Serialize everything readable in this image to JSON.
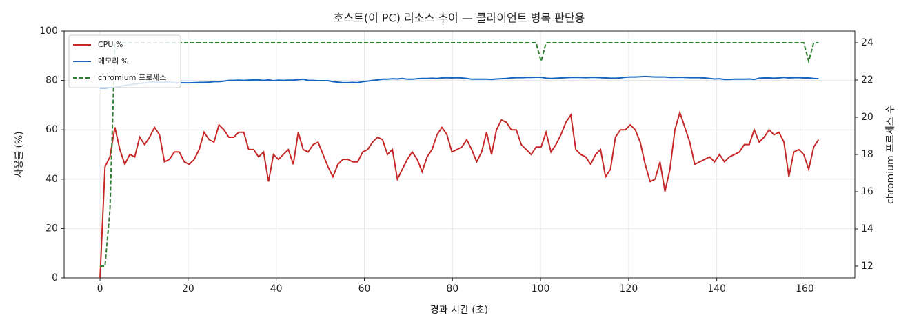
{
  "chart_data": {
    "type": "line",
    "title": "호스트(이 PC) 리소스 추이 — 클라이언트 병목 판단용",
    "x_label": "경과 시간 (초)",
    "y_label": "사용률 (%)",
    "y2_label": "chromium 프로세스 수",
    "x": [
      0,
      1.125,
      2.25,
      3.375,
      4.5,
      5.625,
      6.75,
      7.875,
      9,
      10.125,
      11.25,
      12.375,
      13.5,
      14.625,
      15.75,
      16.875,
      18,
      19.125,
      20.25,
      21.375,
      22.5,
      23.625,
      24.75,
      25.875,
      27,
      28.125,
      29.25,
      30.375,
      31.5,
      32.625,
      33.75,
      34.875,
      36,
      37.125,
      38.25,
      39.375,
      40.5,
      41.625,
      42.75,
      43.875,
      45,
      46.125,
      47.25,
      48.375,
      49.5,
      50.625,
      51.75,
      52.875,
      54,
      55.125,
      56.25,
      57.375,
      58.5,
      59.625,
      60.75,
      61.875,
      63,
      64.125,
      65.25,
      66.375,
      67.5,
      68.625,
      69.75,
      70.875,
      72,
      73.125,
      74.25,
      75.375,
      76.5,
      77.625,
      78.75,
      79.875,
      81,
      82.125,
      83.25,
      84.375,
      85.5,
      86.625,
      87.75,
      88.875,
      90,
      91.125,
      92.25,
      93.375,
      94.5,
      95.625,
      96.75,
      97.875,
      99,
      100.125,
      101.25,
      102.375,
      103.5,
      104.625,
      105.75,
      106.875,
      108,
      109.125,
      110.25,
      111.375,
      112.5,
      113.625,
      114.75,
      115.875,
      117,
      118.125,
      119.25,
      120.375,
      121.5,
      122.625,
      123.75,
      124.875,
      126,
      127.125,
      128.25,
      129.375,
      130.5,
      131.625,
      132.75,
      133.875,
      135,
      136.125,
      137.25,
      138.375,
      139.5,
      140.625,
      141.75,
      142.875,
      144,
      145.125,
      146.25,
      147.375,
      148.5,
      149.625,
      150.75,
      151.875,
      153,
      154.125,
      155.25,
      156.375,
      157.5,
      158.625,
      159.75,
      160.875,
      162,
      163.125
    ],
    "series": [
      {
        "name": "CPU %",
        "color": "#c62828",
        "linestyle": "solid",
        "values": [
          0,
          45,
          49,
          61,
          52,
          46,
          50,
          49,
          57,
          54,
          57,
          61,
          58,
          47,
          48,
          51,
          51,
          47,
          46,
          48,
          52,
          59,
          56,
          55,
          62,
          60,
          57,
          57,
          59,
          59,
          52,
          52,
          49,
          51,
          39,
          50,
          48,
          50,
          52,
          46,
          59,
          52,
          51,
          54,
          55,
          50,
          45,
          41,
          46,
          48,
          48,
          47,
          47,
          51,
          52,
          55,
          57,
          56,
          50,
          52,
          40,
          44,
          48,
          51,
          48,
          43,
          49,
          52,
          58,
          61,
          58,
          51,
          52,
          53,
          56,
          52,
          47,
          51,
          59,
          50,
          60,
          64,
          63,
          60,
          60,
          54,
          52,
          50,
          53,
          53,
          59,
          51,
          54,
          58,
          63,
          66,
          52,
          50,
          49,
          46,
          50,
          52,
          41,
          44,
          57,
          60,
          60,
          62,
          60,
          55,
          46,
          39,
          40,
          47,
          35,
          44,
          60,
          67,
          61,
          55,
          46,
          47,
          48,
          49,
          47,
          50,
          47,
          49,
          50,
          51,
          54,
          54,
          60,
          55,
          57,
          60,
          58,
          59,
          55,
          41,
          51,
          52,
          50,
          44,
          53,
          56
        ]
      },
      {
        "name": "메모리 %",
        "color": "#1565c0",
        "linestyle": "solid",
        "values": [
          77,
          77,
          77.1,
          77.2,
          77.5,
          78,
          78.3,
          78.5,
          78.8,
          79,
          79.2,
          79.3,
          79.3,
          79.2,
          79.4,
          79.2,
          79.1,
          79,
          79,
          79.1,
          79.2,
          79.2,
          79.3,
          79.5,
          79.5,
          79.7,
          80,
          80,
          80.1,
          80,
          80.1,
          80.2,
          80.2,
          80,
          80.2,
          79.9,
          80.1,
          80,
          80.1,
          80.1,
          80.3,
          80.5,
          80,
          80,
          79.9,
          79.9,
          79.9,
          79.5,
          79.3,
          79.1,
          79.1,
          79.2,
          79.1,
          79.5,
          79.7,
          80,
          80.2,
          80.5,
          80.5,
          80.7,
          80.6,
          80.8,
          80.5,
          80.5,
          80.7,
          80.8,
          80.8,
          80.9,
          80.8,
          81,
          81.1,
          81,
          81.1,
          81,
          80.8,
          80.5,
          80.5,
          80.5,
          80.5,
          80.4,
          80.6,
          80.7,
          80.8,
          81,
          81.1,
          81.1,
          81.2,
          81.2,
          81.3,
          81.3,
          80.9,
          80.8,
          80.9,
          81,
          81.1,
          81.2,
          81.2,
          81.2,
          81.1,
          81.2,
          81.2,
          81.1,
          81,
          80.9,
          80.9,
          81,
          81.3,
          81.4,
          81.4,
          81.5,
          81.6,
          81.5,
          81.4,
          81.4,
          81.4,
          81.2,
          81.2,
          81.3,
          81.2,
          81.1,
          81.1,
          81.1,
          81,
          80.8,
          80.6,
          80.7,
          80.4,
          80.4,
          80.5,
          80.5,
          80.5,
          80.6,
          80.4,
          80.9,
          81,
          81,
          80.9,
          81,
          81.2,
          81,
          81.1,
          81.1,
          81,
          81,
          80.8,
          80.7
        ]
      },
      {
        "name": "chromium 프로세스",
        "color": "#2e7d32",
        "linestyle": "dashed",
        "axis": "y2",
        "values": [
          12,
          12,
          15,
          24,
          24,
          24,
          24,
          24,
          24,
          24,
          24,
          24,
          24,
          24,
          24,
          24,
          24,
          24,
          24,
          24,
          24,
          24,
          24,
          24,
          24,
          24,
          24,
          24,
          24,
          24,
          24,
          24,
          24,
          24,
          24,
          24,
          24,
          24,
          24,
          24,
          24,
          24,
          24,
          24,
          24,
          24,
          24,
          24,
          24,
          24,
          24,
          24,
          24,
          24,
          24,
          24,
          24,
          24,
          24,
          24,
          24,
          24,
          24,
          24,
          24,
          24,
          24,
          24,
          24,
          24,
          24,
          24,
          24,
          24,
          24,
          24,
          24,
          24,
          24,
          24,
          24,
          24,
          24,
          24,
          24,
          24,
          24,
          24,
          24,
          23,
          24,
          24,
          24,
          24,
          24,
          24,
          24,
          24,
          24,
          24,
          24,
          24,
          24,
          24,
          24,
          24,
          24,
          24,
          24,
          24,
          24,
          24,
          24,
          24,
          24,
          24,
          24,
          24,
          24,
          24,
          24,
          24,
          24,
          24,
          24,
          24,
          24,
          24,
          24,
          24,
          24,
          24,
          24,
          24,
          24,
          24,
          24,
          24,
          24,
          24,
          24,
          24,
          24,
          23,
          24,
          24
        ]
      }
    ],
    "xlim": [
      -8.15,
      171.35
    ],
    "ylim": [
      0,
      100
    ],
    "y2lim": [
      11.37,
      24.63
    ],
    "xticks": [
      0,
      20,
      40,
      60,
      80,
      100,
      120,
      140,
      160
    ],
    "yticks": [
      0,
      20,
      40,
      60,
      80,
      100
    ],
    "y2ticks": [
      12,
      14,
      16,
      18,
      20,
      22,
      24
    ],
    "grid": true,
    "legend": "upper left"
  }
}
